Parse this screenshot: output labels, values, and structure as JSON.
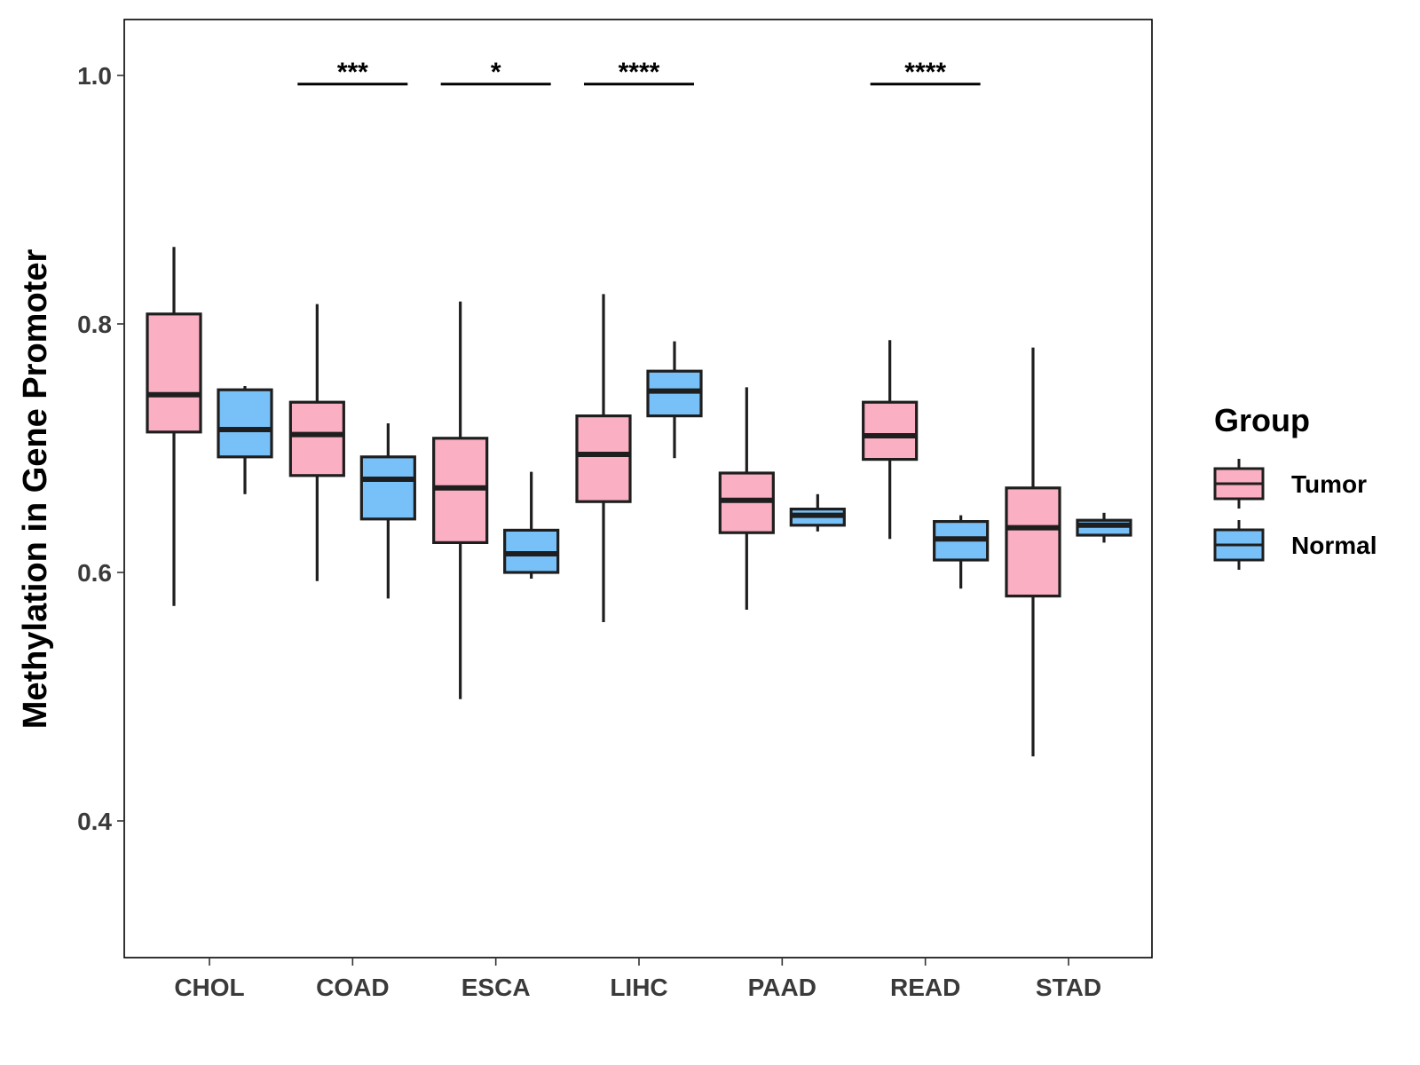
{
  "chart_data": {
    "type": "boxplot",
    "title": "",
    "xlabel": "",
    "ylabel": "Methylation in Gene Promoter",
    "ylim": [
      0.29,
      1.045
    ],
    "yticks": [
      0.4,
      0.6,
      0.8,
      1.0
    ],
    "ytick_labels": [
      "0.4",
      "0.6",
      "0.8",
      "1.0"
    ],
    "categories": [
      "CHOL",
      "COAD",
      "ESCA",
      "LIHC",
      "PAAD",
      "READ",
      "STAD"
    ],
    "grid": false,
    "legend": {
      "title": "Group",
      "position": "right",
      "entries": [
        {
          "name": "Tumor",
          "color": "#FAAFC3"
        },
        {
          "name": "Normal",
          "color": "#78C1F8"
        }
      ]
    },
    "series": [
      {
        "name": "Tumor",
        "color": "#FAAFC3",
        "boxes": [
          {
            "min": 0.573,
            "q1": 0.713,
            "median": 0.743,
            "q3": 0.808,
            "max": 0.862
          },
          {
            "min": 0.593,
            "q1": 0.678,
            "median": 0.711,
            "q3": 0.737,
            "max": 0.816
          },
          {
            "min": 0.498,
            "q1": 0.624,
            "median": 0.668,
            "q3": 0.708,
            "max": 0.818
          },
          {
            "min": 0.56,
            "q1": 0.657,
            "median": 0.695,
            "q3": 0.726,
            "max": 0.824
          },
          {
            "min": 0.57,
            "q1": 0.632,
            "median": 0.658,
            "q3": 0.68,
            "max": 0.749
          },
          {
            "min": 0.627,
            "q1": 0.691,
            "median": 0.71,
            "q3": 0.737,
            "max": 0.787
          },
          {
            "min": 0.452,
            "q1": 0.581,
            "median": 0.636,
            "q3": 0.668,
            "max": 0.781
          }
        ]
      },
      {
        "name": "Normal",
        "color": "#78C1F8",
        "boxes": [
          {
            "min": 0.663,
            "q1": 0.693,
            "median": 0.715,
            "q3": 0.747,
            "max": 0.75
          },
          {
            "min": 0.579,
            "q1": 0.643,
            "median": 0.675,
            "q3": 0.693,
            "max": 0.72
          },
          {
            "min": 0.595,
            "q1": 0.6,
            "median": 0.615,
            "q3": 0.634,
            "max": 0.681
          },
          {
            "min": 0.692,
            "q1": 0.726,
            "median": 0.746,
            "q3": 0.762,
            "max": 0.786
          },
          {
            "min": 0.633,
            "q1": 0.638,
            "median": 0.646,
            "q3": 0.651,
            "max": 0.663
          },
          {
            "min": 0.587,
            "q1": 0.61,
            "median": 0.627,
            "q3": 0.641,
            "max": 0.646
          },
          {
            "min": 0.624,
            "q1": 0.63,
            "median": 0.638,
            "q3": 0.642,
            "max": 0.648
          }
        ]
      }
    ],
    "significance": [
      {
        "category": "COAD",
        "label": "***",
        "y": 0.993
      },
      {
        "category": "ESCA",
        "label": "*",
        "y": 0.993
      },
      {
        "category": "LIHC",
        "label": "****",
        "y": 0.993
      },
      {
        "category": "READ",
        "label": "****",
        "y": 0.993
      }
    ]
  }
}
